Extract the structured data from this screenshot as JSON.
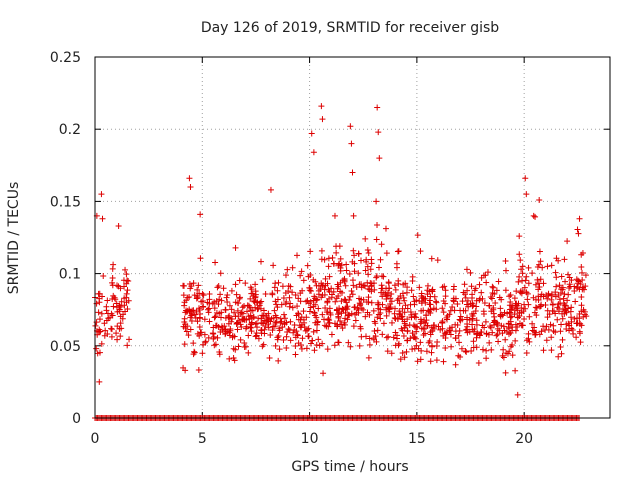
{
  "chart_data": {
    "type": "scatter",
    "title": "Day 126 of 2019, SRMTID for receiver gisb",
    "xlabel": "GPS time / hours",
    "ylabel": "SRMTID / TECUs",
    "xlim": [
      0,
      24
    ],
    "ylim": [
      0,
      0.25
    ],
    "xticks": [
      0,
      5,
      10,
      15,
      20
    ],
    "xtick_labels": [
      "0",
      "5",
      "10",
      "15",
      "20"
    ],
    "yticks": [
      0,
      0.05,
      0.1,
      0.15,
      0.2,
      0.25
    ],
    "ytick_labels": [
      "0",
      "0.05",
      "0.1",
      "0.15",
      "0.2",
      "0.25"
    ],
    "grid": true,
    "marker": "+",
    "color": "#dd0000",
    "series": [
      {
        "name": "SRMTID",
        "segments": [
          {
            "t_start": 0.0,
            "t_end": 1.6,
            "base": 0.08,
            "amp": 0.028,
            "count": 90
          },
          {
            "t_start": 4.1,
            "t_end": 9.9,
            "base": 0.07,
            "amp": 0.022,
            "count": 380
          },
          {
            "t_start": 9.9,
            "t_end": 13.8,
            "base": 0.08,
            "amp": 0.03,
            "count": 300
          },
          {
            "t_start": 13.8,
            "t_end": 19.6,
            "base": 0.068,
            "amp": 0.024,
            "count": 400
          },
          {
            "t_start": 19.6,
            "t_end": 22.9,
            "base": 0.08,
            "amp": 0.026,
            "count": 230
          }
        ],
        "zero_intervals": [
          [
            0.0,
            22.6
          ]
        ],
        "notable_points": [
          {
            "x": 0.3,
            "y": 0.155
          },
          {
            "x": 0.35,
            "y": 0.138
          },
          {
            "x": 1.1,
            "y": 0.133
          },
          {
            "x": 4.4,
            "y": 0.166
          },
          {
            "x": 4.45,
            "y": 0.16
          },
          {
            "x": 4.9,
            "y": 0.141
          },
          {
            "x": 8.2,
            "y": 0.158
          },
          {
            "x": 10.1,
            "y": 0.197
          },
          {
            "x": 10.2,
            "y": 0.184
          },
          {
            "x": 10.55,
            "y": 0.216
          },
          {
            "x": 10.6,
            "y": 0.207
          },
          {
            "x": 11.9,
            "y": 0.202
          },
          {
            "x": 11.95,
            "y": 0.19
          },
          {
            "x": 12.0,
            "y": 0.17
          },
          {
            "x": 13.15,
            "y": 0.215
          },
          {
            "x": 13.2,
            "y": 0.198
          },
          {
            "x": 13.25,
            "y": 0.18
          },
          {
            "x": 13.1,
            "y": 0.15
          },
          {
            "x": 20.05,
            "y": 0.166
          },
          {
            "x": 20.1,
            "y": 0.155
          },
          {
            "x": 20.7,
            "y": 0.151
          },
          {
            "x": 19.7,
            "y": 0.016
          },
          {
            "x": 0.2,
            "y": 0.025
          },
          {
            "x": 4.2,
            "y": 0.033
          }
        ]
      }
    ]
  }
}
